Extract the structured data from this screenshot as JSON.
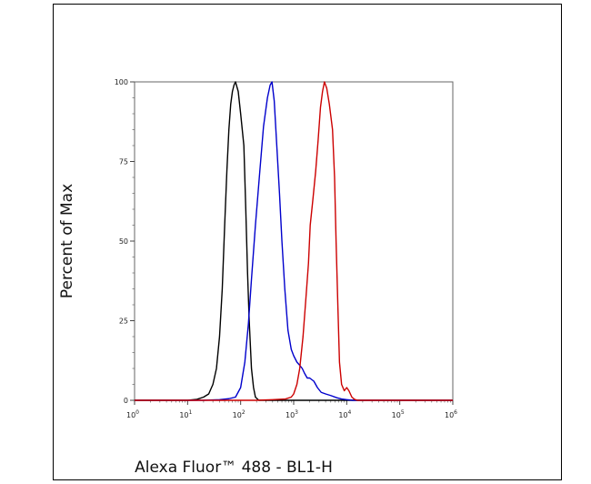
{
  "chart_data": {
    "type": "line",
    "xlabel": "Alexa Fluor™ 488 - BL1-H",
    "ylabel": "Percent of Max",
    "x_scale": "log",
    "xlim": [
      1,
      1000000
    ],
    "ylim": [
      0,
      100
    ],
    "x_ticks": [
      {
        "base": "10",
        "exp": "0",
        "value": 1
      },
      {
        "base": "10",
        "exp": "1",
        "value": 10
      },
      {
        "base": "10",
        "exp": "2",
        "value": 100
      },
      {
        "base": "10",
        "exp": "3",
        "value": 1000
      },
      {
        "base": "10",
        "exp": "4",
        "value": 10000
      },
      {
        "base": "10",
        "exp": "5",
        "value": 100000
      },
      {
        "base": "10",
        "exp": "6",
        "value": 1000000
      }
    ],
    "y_ticks": [
      "0",
      "25",
      "50",
      "75",
      "100"
    ],
    "grid": false,
    "legend": "none",
    "series": [
      {
        "color": "#000000",
        "points": [
          [
            1,
            0
          ],
          [
            10,
            0
          ],
          [
            15,
            0.3
          ],
          [
            20,
            1
          ],
          [
            25,
            2
          ],
          [
            30,
            5
          ],
          [
            35,
            10
          ],
          [
            40,
            20
          ],
          [
            45,
            35
          ],
          [
            50,
            55
          ],
          [
            55,
            72
          ],
          [
            60,
            85
          ],
          [
            65,
            93
          ],
          [
            70,
            97
          ],
          [
            75,
            99
          ],
          [
            80,
            100
          ],
          [
            90,
            97
          ],
          [
            100,
            90
          ],
          [
            115,
            80
          ],
          [
            125,
            60
          ],
          [
            135,
            40
          ],
          [
            145,
            25
          ],
          [
            160,
            10
          ],
          [
            175,
            4
          ],
          [
            190,
            1
          ],
          [
            220,
            0
          ],
          [
            1000000,
            0
          ]
        ]
      },
      {
        "color": "#0000cc",
        "points": [
          [
            1,
            0
          ],
          [
            20,
            0
          ],
          [
            40,
            0.2
          ],
          [
            60,
            0.5
          ],
          [
            80,
            1
          ],
          [
            100,
            4
          ],
          [
            120,
            12
          ],
          [
            140,
            24
          ],
          [
            160,
            38
          ],
          [
            190,
            55
          ],
          [
            230,
            72
          ],
          [
            270,
            86
          ],
          [
            320,
            95
          ],
          [
            360,
            99
          ],
          [
            390,
            100
          ],
          [
            430,
            94
          ],
          [
            480,
            80
          ],
          [
            540,
            65
          ],
          [
            600,
            50
          ],
          [
            680,
            35
          ],
          [
            780,
            22
          ],
          [
            900,
            16
          ],
          [
            1000,
            14
          ],
          [
            1150,
            12
          ],
          [
            1300,
            11
          ],
          [
            1450,
            10
          ],
          [
            1600,
            8.5
          ],
          [
            1800,
            7
          ],
          [
            2000,
            7
          ],
          [
            2400,
            6
          ],
          [
            2800,
            4
          ],
          [
            3300,
            2.5
          ],
          [
            4000,
            2
          ],
          [
            5000,
            1.5
          ],
          [
            6500,
            0.8
          ],
          [
            8000,
            0.4
          ],
          [
            10000,
            0.2
          ],
          [
            13000,
            0
          ],
          [
            1000000,
            0
          ]
        ]
      },
      {
        "color": "#cc0000",
        "points": [
          [
            1,
            0
          ],
          [
            200,
            0
          ],
          [
            400,
            0.2
          ],
          [
            700,
            0.4
          ],
          [
            900,
            1
          ],
          [
            1000,
            2
          ],
          [
            1150,
            5
          ],
          [
            1300,
            10
          ],
          [
            1500,
            20
          ],
          [
            1700,
            32
          ],
          [
            1900,
            43
          ],
          [
            2050,
            55
          ],
          [
            2300,
            63
          ],
          [
            2600,
            72
          ],
          [
            2900,
            82
          ],
          [
            3200,
            92
          ],
          [
            3500,
            97
          ],
          [
            3800,
            100
          ],
          [
            4200,
            98
          ],
          [
            4700,
            93
          ],
          [
            5400,
            85
          ],
          [
            5900,
            70
          ],
          [
            6300,
            50
          ],
          [
            6800,
            30
          ],
          [
            7300,
            12
          ],
          [
            8000,
            5
          ],
          [
            9000,
            3
          ],
          [
            10000,
            4
          ],
          [
            11000,
            3
          ],
          [
            12500,
            1
          ],
          [
            14000,
            0.3
          ],
          [
            16000,
            0
          ],
          [
            1000000,
            0
          ]
        ]
      }
    ]
  }
}
